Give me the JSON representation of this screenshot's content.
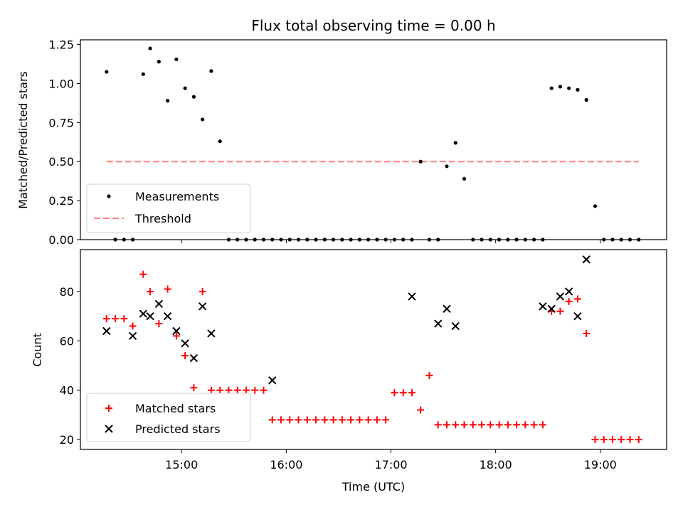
{
  "chart_data": [
    {
      "type": "scatter",
      "title": "Flux total observing time = 0.00 h",
      "xlabel": "",
      "ylabel": "Matched/Predicted stars",
      "ylim": [
        0,
        1.28
      ],
      "yticks": [
        "0.00",
        "0.25",
        "0.50",
        "0.75",
        "1.00",
        "1.25"
      ],
      "ytick_values": [
        0,
        0.25,
        0.5,
        0.75,
        1.0,
        1.25
      ],
      "xlim": [
        "14:02",
        "19:38"
      ],
      "legend_position": "lower-left",
      "series": [
        {
          "name": "Measurements",
          "marker": "dot",
          "color": "#000000",
          "x": [
            "14:17",
            "14:22",
            "14:27",
            "14:32",
            "14:38",
            "14:42",
            "14:47",
            "14:52",
            "14:57",
            "15:02",
            "15:07",
            "15:12",
            "15:17",
            "15:22",
            "15:27",
            "15:32",
            "15:37",
            "15:42",
            "15:47",
            "15:52",
            "15:57",
            "16:02",
            "16:07",
            "16:12",
            "16:17",
            "16:22",
            "16:27",
            "16:32",
            "16:37",
            "16:42",
            "16:47",
            "16:52",
            "16:57",
            "17:02",
            "17:07",
            "17:12",
            "17:17",
            "17:22",
            "17:27",
            "17:32",
            "17:37",
            "17:42",
            "17:47",
            "17:52",
            "17:57",
            "18:02",
            "18:07",
            "18:12",
            "18:17",
            "18:22",
            "18:27",
            "18:32",
            "18:37",
            "18:42",
            "18:47",
            "18:52",
            "18:57",
            "19:02",
            "19:07",
            "19:12",
            "19:17",
            "19:22"
          ],
          "y": [
            1.075,
            0.0,
            0.0,
            0.0,
            1.06,
            1.225,
            1.14,
            0.89,
            1.155,
            0.97,
            0.915,
            0.77,
            1.08,
            0.63,
            0.0,
            0.0,
            0.0,
            0.0,
            0.0,
            0.0,
            0.0,
            0.0,
            0.0,
            0.0,
            0.0,
            0.0,
            0.0,
            0.0,
            0.0,
            0.0,
            0.0,
            0.0,
            0.0,
            0.0,
            0.0,
            0.0,
            0.5,
            0.0,
            0.0,
            0.47,
            0.62,
            0.39,
            0.0,
            0.0,
            0.0,
            0.0,
            0.0,
            0.0,
            0.0,
            0.0,
            0.0,
            0.97,
            0.98,
            0.97,
            0.96,
            0.895,
            0.215,
            0.0,
            0.0,
            0.0,
            0.0,
            0.0
          ]
        },
        {
          "name": "Threshold",
          "marker": "dashed-line",
          "color": "#ff7f7f",
          "x": [
            "14:17",
            "19:22"
          ],
          "y": [
            0.5,
            0.5
          ]
        }
      ]
    },
    {
      "type": "scatter",
      "title": "",
      "xlabel": "Time (UTC)",
      "ylabel": "Count",
      "ylim": [
        16,
        97
      ],
      "yticks": [
        "20",
        "40",
        "60",
        "80"
      ],
      "ytick_values": [
        20,
        40,
        60,
        80
      ],
      "xlim": [
        "14:02",
        "19:38"
      ],
      "xticks": [
        "15:00",
        "16:00",
        "17:00",
        "18:00",
        "19:00"
      ],
      "legend_position": "lower-left",
      "series": [
        {
          "name": "Matched stars",
          "marker": "plus",
          "color": "#ff0000",
          "x": [
            "14:17",
            "14:22",
            "14:27",
            "14:32",
            "14:38",
            "14:42",
            "14:47",
            "14:52",
            "14:57",
            "15:02",
            "15:07",
            "15:12",
            "15:17",
            "15:22",
            "15:27",
            "15:32",
            "15:37",
            "15:42",
            "15:47",
            "15:52",
            "15:57",
            "16:02",
            "16:07",
            "16:12",
            "16:17",
            "16:22",
            "16:27",
            "16:32",
            "16:37",
            "16:42",
            "16:47",
            "16:52",
            "16:57",
            "17:02",
            "17:07",
            "17:12",
            "17:17",
            "17:22",
            "17:27",
            "17:32",
            "17:37",
            "17:42",
            "17:47",
            "17:52",
            "17:57",
            "18:02",
            "18:07",
            "18:12",
            "18:17",
            "18:22",
            "18:27",
            "18:32",
            "18:37",
            "18:42",
            "18:47",
            "18:52",
            "18:57",
            "19:02",
            "19:07",
            "19:12",
            "19:17",
            "19:22"
          ],
          "y": [
            69,
            69,
            69,
            66,
            87,
            80,
            67,
            81,
            62,
            54,
            41,
            80,
            40,
            40,
            40,
            40,
            40,
            40,
            40,
            28,
            28,
            28,
            28,
            28,
            28,
            28,
            28,
            28,
            28,
            28,
            28,
            28,
            28,
            39,
            39,
            39,
            32,
            46,
            26,
            26,
            26,
            26,
            26,
            26,
            26,
            26,
            26,
            26,
            26,
            26,
            26,
            72,
            72,
            76,
            77,
            63,
            20,
            20,
            20,
            20,
            20,
            20
          ]
        },
        {
          "name": "Predicted stars",
          "marker": "x",
          "color": "#000000",
          "x": [
            "14:17",
            "14:32",
            "14:38",
            "14:42",
            "14:47",
            "14:52",
            "14:57",
            "15:02",
            "15:07",
            "15:12",
            "15:17",
            "15:52",
            "17:12",
            "17:27",
            "17:32",
            "17:37",
            "18:27",
            "18:32",
            "18:37",
            "18:42",
            "18:47",
            "18:52"
          ],
          "y": [
            64,
            62,
            71,
            70,
            75,
            70,
            64,
            59,
            53,
            74,
            63,
            44,
            78,
            67,
            73,
            66,
            74,
            73,
            78,
            80,
            70,
            93
          ]
        }
      ]
    }
  ]
}
